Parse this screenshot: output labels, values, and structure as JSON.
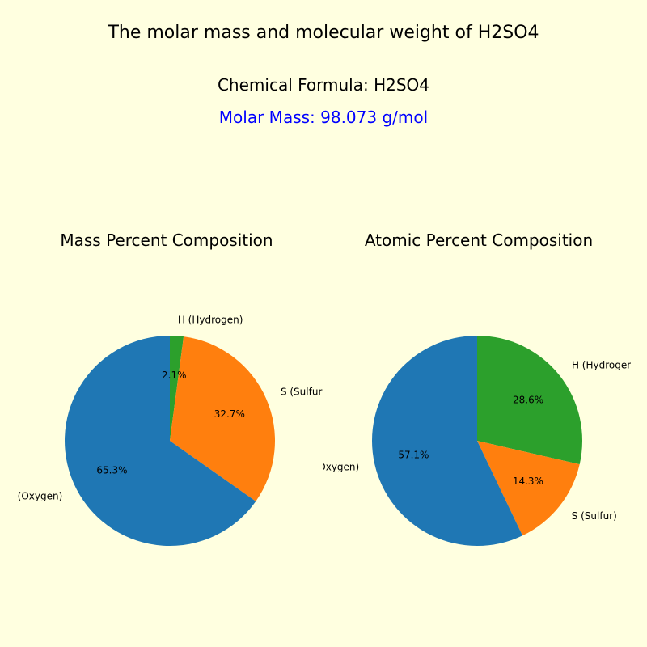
{
  "background_color": "#ffffe0",
  "main_title": "The molar mass and molecular weight of H2SO4",
  "formula_line": "Chemical Formula: H2SO4",
  "molar_mass_line": "Molar Mass: 98.073 g/mol",
  "molar_mass_color": "#0000ff",
  "title_fontsize": 22,
  "info_fontsize": 20,
  "subtitle_fontsize": 20,
  "label_fontsize": 12,
  "colors": {
    "hydrogen": "#2ca02c",
    "sulfur": "#ff7f0e",
    "oxygen": "#1f77b4"
  },
  "start_angle_deg": 90,
  "pie_radius": 130,
  "charts": [
    {
      "title": "Mass Percent Composition",
      "slices": [
        {
          "label": "H (Hydrogen)",
          "value": 2.1,
          "color_key": "hydrogen",
          "pct_text": "2.1%"
        },
        {
          "label": "S (Sulfur)",
          "value": 32.7,
          "color_key": "sulfur",
          "pct_text": "32.7%"
        },
        {
          "label": "O (Oxygen)",
          "value": 65.3,
          "color_key": "oxygen",
          "pct_text": "65.3%"
        }
      ]
    },
    {
      "title": "Atomic Percent Composition",
      "slices": [
        {
          "label": "H (Hydrogen)",
          "value": 28.6,
          "color_key": "hydrogen",
          "pct_text": "28.6%"
        },
        {
          "label": "S (Sulfur)",
          "value": 14.3,
          "color_key": "sulfur",
          "pct_text": "14.3%"
        },
        {
          "label": "O (Oxygen)",
          "value": 57.1,
          "color_key": "oxygen",
          "pct_text": "57.1%"
        }
      ]
    }
  ]
}
